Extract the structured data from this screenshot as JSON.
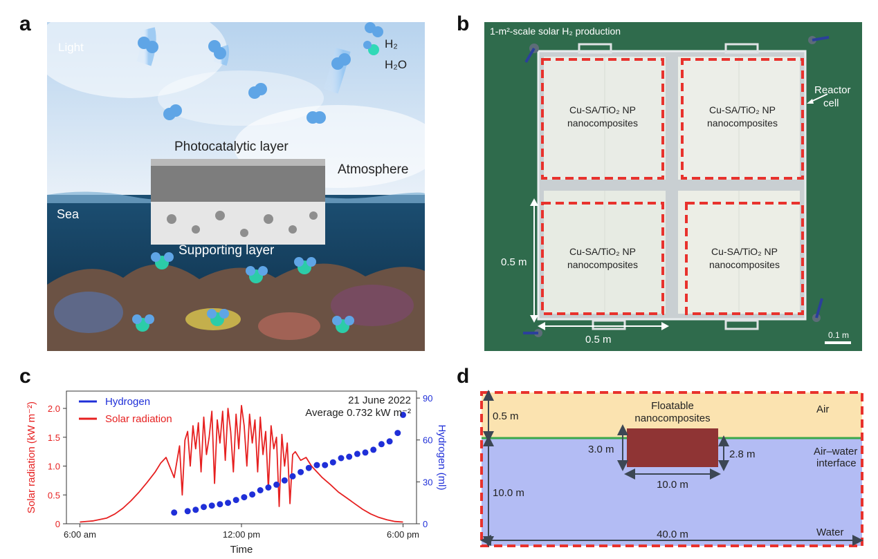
{
  "panels": {
    "a": {
      "letter": "a",
      "light": "Light",
      "legend_h2": "H₂",
      "legend_h2o": "H₂O",
      "photocatalytic_layer": "Photocatalytic layer",
      "atmosphere": "Atmosphere",
      "sea": "Sea",
      "supporting_layer": "Supporting layer"
    },
    "b": {
      "letter": "b",
      "title": "1-m²-scale solar H₂ production",
      "reactor_cell": "Reactor\ncell",
      "cell_label_line1": "Cu-SA/TiO₂ NP",
      "cell_label_line2": "nanocomposites",
      "dim_vertical": "0.5 m",
      "dim_horizontal": "0.5 m",
      "scale_bar": "0.1 m"
    },
    "c": {
      "letter": "c",
      "date": "21 June 2022",
      "average": "Average 0.732 kW m⁻²",
      "legend_hydrogen": "Hydrogen",
      "legend_solar": "Solar radiation",
      "xlabel": "Time",
      "ylabel_left": "Solar radiation (kW m⁻²)",
      "ylabel_right": "Hydrogen (ml)"
    },
    "d": {
      "letter": "d",
      "floatable": "Floatable\nnanocomposites",
      "air": "Air",
      "air_water": "Air–water\ninterface",
      "water": "Water",
      "dim_air": "0.5 m",
      "dim_left_block": "3.0 m",
      "dim_right_block": "2.8 m",
      "dim_block_width": "10.0 m",
      "dim_water": "10.0 m",
      "dim_total_width": "40.0 m"
    }
  },
  "colors": {
    "solar": "#e62020",
    "hydrogen": "#1f2fd8",
    "air_fill": "#fbe3b0",
    "water_fill": "#b3bcf4",
    "interface": "#3aa84a",
    "block": "#8f3434",
    "dash_red": "#e8322d",
    "reactor_green": "#2f6b4c"
  },
  "chart_data": {
    "type": "line",
    "x_unit": "hour of day",
    "x_range": [
      5.5,
      18.5
    ],
    "x_ticks": [
      {
        "value": 6,
        "label": "6:00 am"
      },
      {
        "value": 12,
        "label": "12:00 pm"
      },
      {
        "value": 18,
        "label": "6:00 pm"
      }
    ],
    "ylim_left": [
      0,
      2.3
    ],
    "y_ticks_left": [
      "0",
      "0.5",
      "1.0",
      "1.5",
      "2.0"
    ],
    "ylim_right": [
      0,
      95
    ],
    "y_ticks_right": [
      "0",
      "30",
      "60",
      "90"
    ],
    "series": [
      {
        "name": "Solar radiation",
        "axis": "left",
        "style": "line",
        "x": [
          6.0,
          6.5,
          7.0,
          7.3,
          7.6,
          7.9,
          8.2,
          8.5,
          8.8,
          9.0,
          9.2,
          9.5,
          9.7,
          9.8,
          9.9,
          10.0,
          10.1,
          10.2,
          10.3,
          10.4,
          10.5,
          10.6,
          10.7,
          10.8,
          10.9,
          11.0,
          11.1,
          11.2,
          11.3,
          11.4,
          11.5,
          11.6,
          11.7,
          11.8,
          11.9,
          12.0,
          12.1,
          12.2,
          12.3,
          12.4,
          12.5,
          12.6,
          12.7,
          12.8,
          12.9,
          13.0,
          13.1,
          13.2,
          13.3,
          13.4,
          13.5,
          13.6,
          13.7,
          13.8,
          13.9,
          14.0,
          14.2,
          14.4,
          14.6,
          14.8,
          15.0,
          15.3,
          15.6,
          15.9,
          16.2,
          16.5,
          16.8,
          17.1,
          17.4,
          17.7,
          18.0
        ],
        "y": [
          0.03,
          0.05,
          0.1,
          0.17,
          0.27,
          0.4,
          0.55,
          0.72,
          0.9,
          1.05,
          1.15,
          0.8,
          1.35,
          0.5,
          1.45,
          1.6,
          1.0,
          1.7,
          1.3,
          1.75,
          0.9,
          1.85,
          1.2,
          1.5,
          1.95,
          0.7,
          1.8,
          1.4,
          1.95,
          1.1,
          2.0,
          1.6,
          0.9,
          1.9,
          1.3,
          2.05,
          1.7,
          1.0,
          1.9,
          1.4,
          1.8,
          0.9,
          1.85,
          1.2,
          1.6,
          0.6,
          1.7,
          1.3,
          1.5,
          0.3,
          1.55,
          1.0,
          1.4,
          0.35,
          1.2,
          1.25,
          1.1,
          1.15,
          1.0,
          0.9,
          0.8,
          0.68,
          0.55,
          0.45,
          0.35,
          0.25,
          0.17,
          0.11,
          0.07,
          0.04,
          0.03
        ]
      },
      {
        "name": "Hydrogen",
        "axis": "right",
        "style": "points",
        "x": [
          9.5,
          10.0,
          10.3,
          10.6,
          10.9,
          11.2,
          11.5,
          11.8,
          12.1,
          12.4,
          12.7,
          13.0,
          13.3,
          13.6,
          13.9,
          14.2,
          14.5,
          14.8,
          15.1,
          15.4,
          15.7,
          16.0,
          16.3,
          16.6,
          16.9,
          17.2,
          17.5,
          17.8,
          18.0
        ],
        "y": [
          8,
          9,
          10,
          12,
          13,
          14,
          15,
          17,
          19,
          21,
          24,
          26,
          28,
          31,
          34,
          37,
          40,
          42,
          42,
          44,
          47,
          48,
          50,
          51,
          53,
          57,
          59,
          65,
          78
        ]
      }
    ],
    "legend": "top-left",
    "grid": false
  }
}
